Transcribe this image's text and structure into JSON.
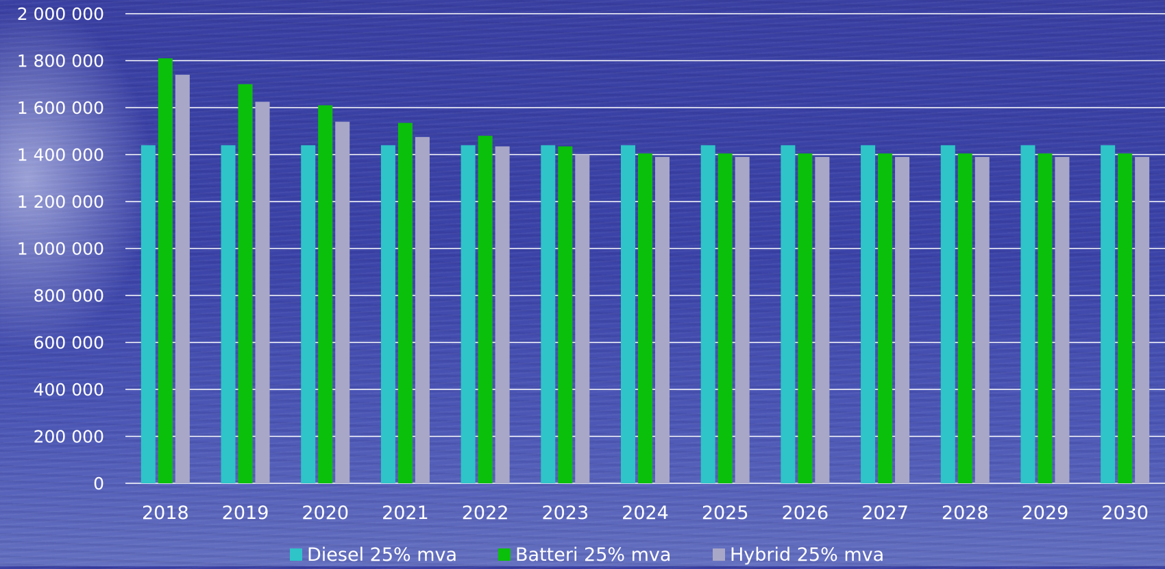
{
  "chart_data": {
    "type": "bar",
    "categories": [
      "2018",
      "2019",
      "2020",
      "2021",
      "2022",
      "2023",
      "2024",
      "2025",
      "2026",
      "2027",
      "2028",
      "2029",
      "2030"
    ],
    "series": [
      {
        "name": "Diesel 25% mva",
        "color": "#2ec4c8",
        "values": [
          1440000,
          1440000,
          1440000,
          1440000,
          1440000,
          1440000,
          1440000,
          1440000,
          1440000,
          1440000,
          1440000,
          1440000,
          1440000
        ]
      },
      {
        "name": "Batteri 25% mva",
        "color": "#0ac00a",
        "values": [
          1810000,
          1700000,
          1610000,
          1535000,
          1480000,
          1435000,
          1405000,
          1405000,
          1405000,
          1405000,
          1405000,
          1405000,
          1405000
        ]
      },
      {
        "name": "Hybrid 25% mva",
        "color": "#a9a7c7",
        "values": [
          1740000,
          1625000,
          1540000,
          1475000,
          1435000,
          1400000,
          1390000,
          1390000,
          1390000,
          1390000,
          1390000,
          1390000,
          1390000
        ]
      }
    ],
    "yticks": [
      "0",
      "200 000",
      "400 000",
      "600 000",
      "800 000",
      "1 000 000",
      "1 200 000",
      "1 400 000",
      "1 600 000",
      "1 800 000",
      "2 000 000"
    ],
    "ylim": [
      0,
      2000000
    ],
    "grid": true,
    "legend_position": "bottom",
    "title": "",
    "xlabel": "",
    "ylabel": ""
  }
}
